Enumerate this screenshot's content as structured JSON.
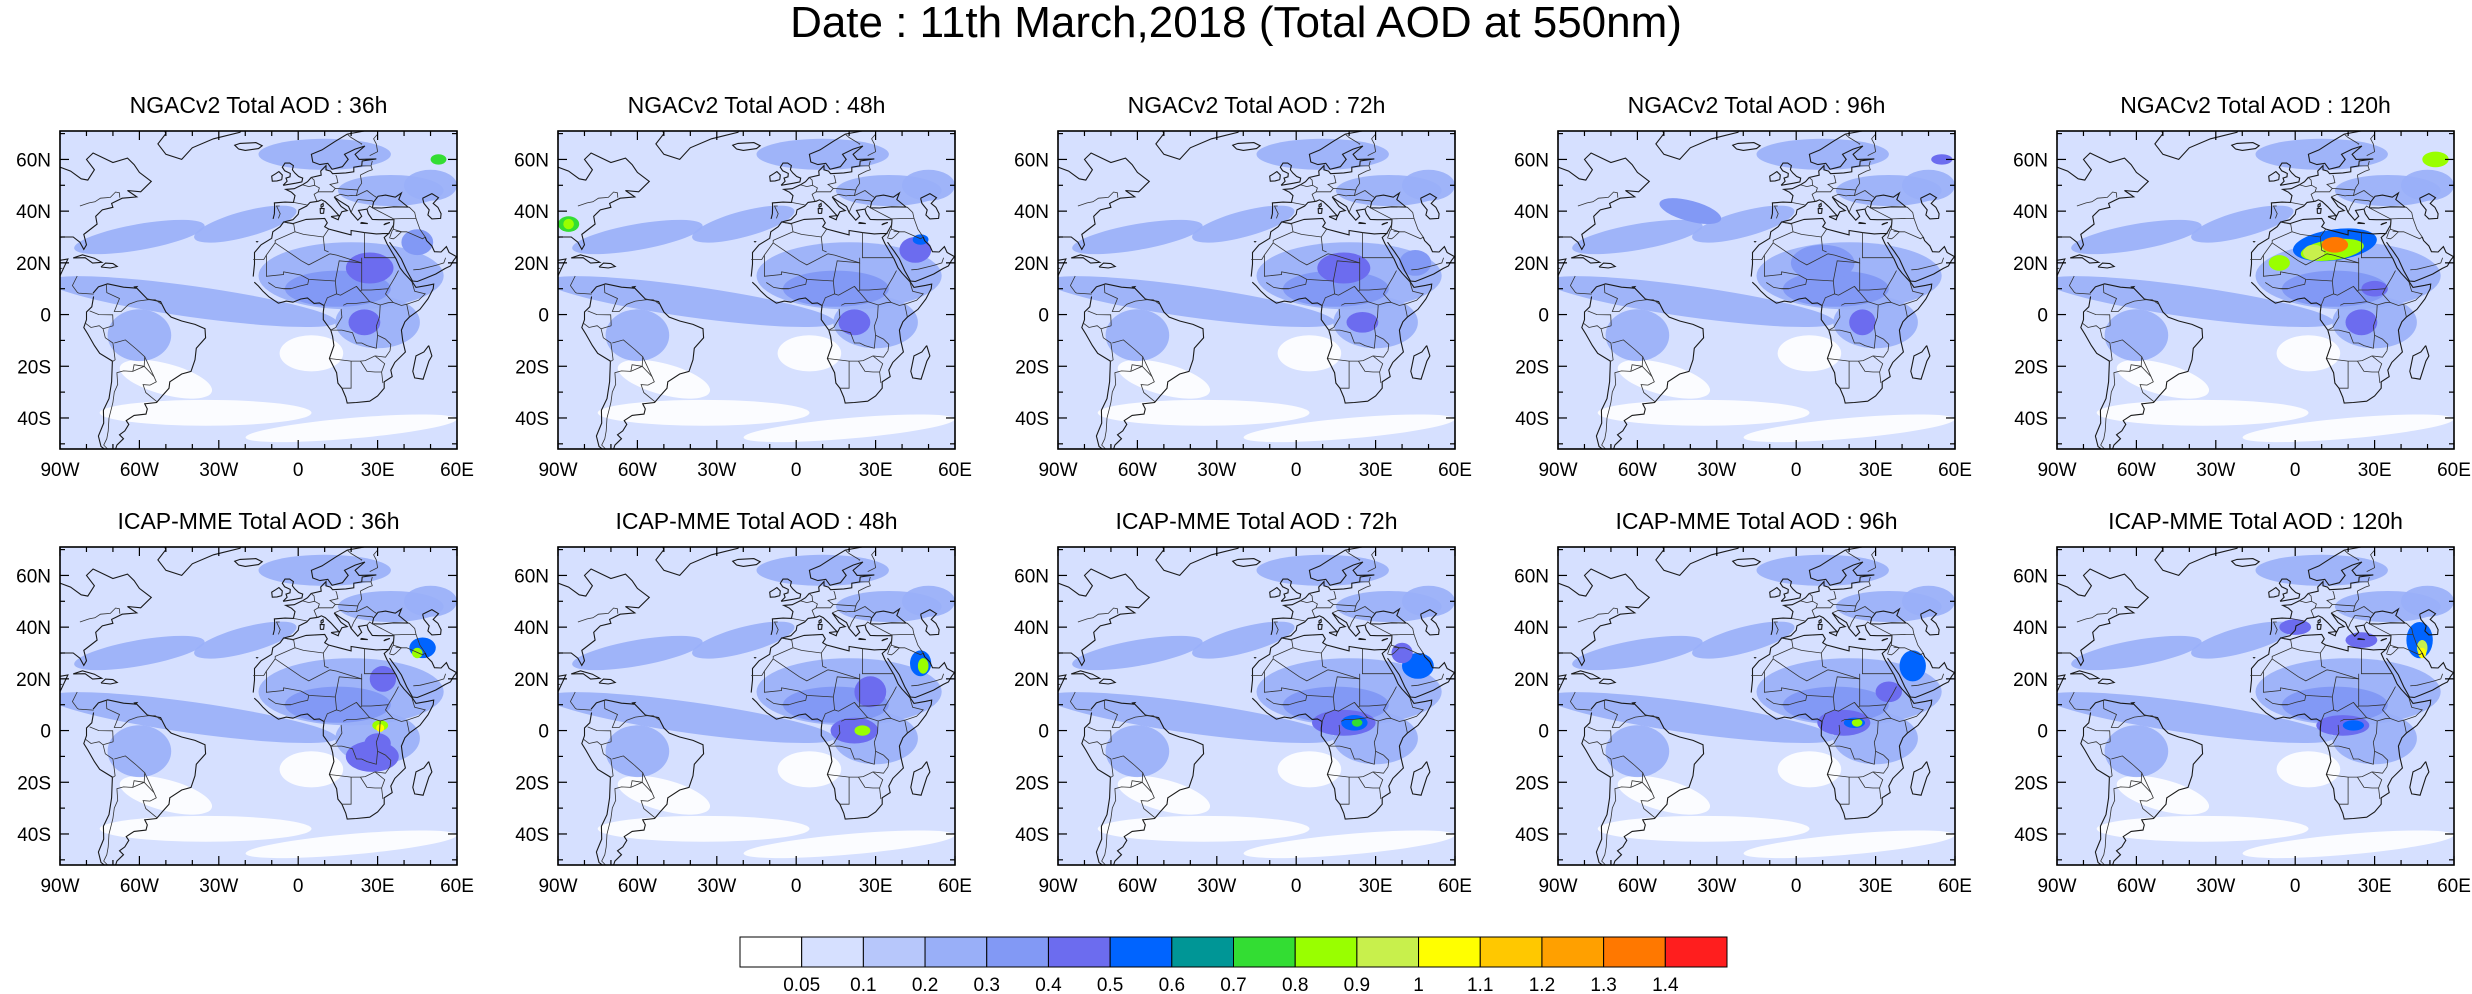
{
  "title": "Date : 11th March,2018 (Total AOD at 550nm)",
  "panels": [
    {
      "title": "NGACv2 Total AOD : 36h",
      "model": "NGACv2",
      "lead": "36h"
    },
    {
      "title": "NGACv2 Total AOD : 48h",
      "model": "NGACv2",
      "lead": "48h"
    },
    {
      "title": "NGACv2 Total AOD : 72h",
      "model": "NGACv2",
      "lead": "72h"
    },
    {
      "title": "NGACv2 Total AOD : 96h",
      "model": "NGACv2",
      "lead": "96h"
    },
    {
      "title": "NGACv2 Total AOD : 120h",
      "model": "NGACv2",
      "lead": "120h"
    },
    {
      "title": "ICAP-MME Total AOD : 36h",
      "model": "ICAP-MME",
      "lead": "36h"
    },
    {
      "title": "ICAP-MME Total AOD : 48h",
      "model": "ICAP-MME",
      "lead": "48h"
    },
    {
      "title": "ICAP-MME Total AOD : 72h",
      "model": "ICAP-MME",
      "lead": "72h"
    },
    {
      "title": "ICAP-MME Total AOD : 96h",
      "model": "ICAP-MME",
      "lead": "96h"
    },
    {
      "title": "ICAP-MME Total AOD : 120h",
      "model": "ICAP-MME",
      "lead": "120h"
    }
  ],
  "axes": {
    "lon_ticks": [
      {
        "value": -90,
        "label": "90W"
      },
      {
        "value": -60,
        "label": "60W"
      },
      {
        "value": -30,
        "label": "30W"
      },
      {
        "value": 0,
        "label": "0"
      },
      {
        "value": 30,
        "label": "30E"
      },
      {
        "value": 60,
        "label": "60E"
      }
    ],
    "lat_ticks": [
      {
        "value": 60,
        "label": "60N"
      },
      {
        "value": 40,
        "label": "40N"
      },
      {
        "value": 20,
        "label": "20N"
      },
      {
        "value": 0,
        "label": "0"
      },
      {
        "value": -20,
        "label": "20S"
      },
      {
        "value": -40,
        "label": "40S"
      }
    ],
    "lon_range": [
      -90,
      60
    ],
    "lat_range": [
      -52,
      71
    ]
  },
  "colorbar": {
    "levels": [
      "0.05",
      "0.1",
      "0.2",
      "0.3",
      "0.4",
      "0.5",
      "0.6",
      "0.7",
      "0.8",
      "0.9",
      "1",
      "1.1",
      "1.2",
      "1.3",
      "1.4"
    ],
    "colors": [
      "#ffffff",
      "#d6e0ff",
      "#b7c7fb",
      "#99aff8",
      "#8299f5",
      "#6c6cef",
      "#0064ff",
      "#009696",
      "#33dd33",
      "#99ff00",
      "#c8f04c",
      "#ffff00",
      "#ffc800",
      "#ffa000",
      "#ff7800",
      "#ff1e1e"
    ]
  },
  "style": {
    "background_aod_color": "#d6e0ff",
    "land_color": "#ffffff"
  }
}
